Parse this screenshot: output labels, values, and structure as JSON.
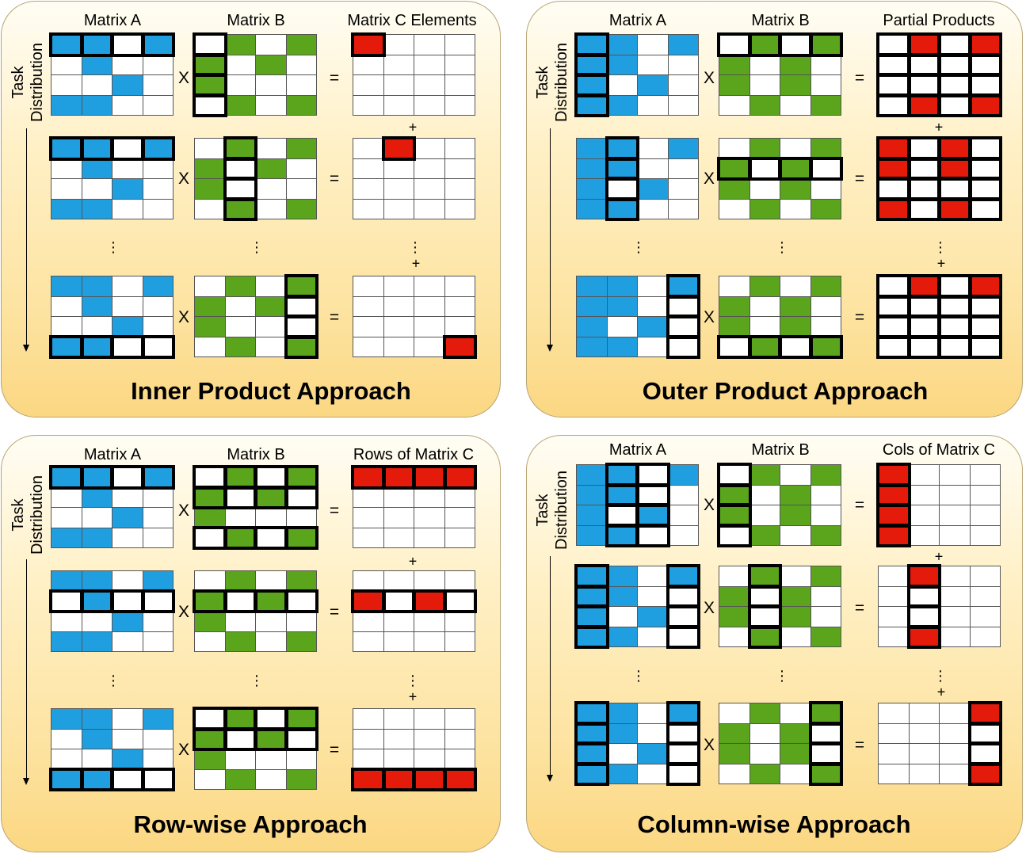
{
  "colors": {
    "a": "#1f9fe0",
    "b": "#5aa51c",
    "c": "#e41b0a",
    "empty": "#ffffff",
    "panel_edge": "#b8a473"
  },
  "task_distribution_label": "Task Distribution",
  "operators": {
    "multiply": "X",
    "equals": "=",
    "plus": "+",
    "ellipsis": "⋮"
  },
  "panels": [
    {
      "title": "Inner Product Approach",
      "headers": [
        "Matrix A",
        "Matrix B",
        "Matrix C Elements"
      ],
      "matrix_a": [
        "1101",
        "0100",
        "0010",
        "1100"
      ],
      "matrix_b": [
        "0101",
        "1010",
        "1000",
        "0101"
      ],
      "steps": [
        {
          "a_select": "row 1",
          "b_select": "col 1",
          "c_select": "cell 1,1",
          "c_filled": "cell 1,1"
        },
        {
          "a_select": "row 1",
          "b_select": "col 2",
          "c_select": "cell 1,2",
          "c_filled": "cell 1,2"
        },
        {
          "a_select": "row 4",
          "b_select": "col 4",
          "c_select": "cell 4,4",
          "c_filled": "cell 4,4"
        }
      ]
    },
    {
      "title": "Outer Product Approach",
      "headers": [
        "Matrix A",
        "Matrix B",
        "Partial Products"
      ],
      "matrix_a": [
        "1101",
        "1100",
        "1010",
        "1100"
      ],
      "matrix_b": [
        "0101",
        "1010",
        "1010",
        "0101"
      ],
      "steps": [
        {
          "a_select": "col 1",
          "b_select": "row 1",
          "c_select": "all",
          "c_filled": "0101 / 0000 / 0000 / 0101"
        },
        {
          "a_select": "col 2",
          "b_select": "row 2",
          "c_select": "all",
          "c_filled": "1010 / 1010 / 0000 / 1010"
        },
        {
          "a_select": "col 4",
          "b_select": "row 4",
          "c_select": "all",
          "c_filled": "0101 / 0000 / 0000 / 0000"
        }
      ]
    },
    {
      "title": "Row-wise Approach",
      "headers": [
        "Matrix A",
        "Matrix B",
        "Rows of Matrix C"
      ],
      "matrix_a": [
        "1101",
        "0100",
        "0010",
        "1100"
      ],
      "matrix_b": [
        "0101",
        "1010",
        "1000",
        "0101"
      ],
      "steps": [
        {
          "a_select": "row 1",
          "b_select": "rows 1,2,4",
          "c_select": "row 1",
          "c_filled": "row 1"
        },
        {
          "a_select": "row 2",
          "b_select": "row 2",
          "c_select": "row 2",
          "c_filled": "1010"
        },
        {
          "a_select": "row 4",
          "b_select": "rows 1,2",
          "c_select": "row 4",
          "c_filled": "row 4"
        }
      ]
    },
    {
      "title": "Column-wise Approach",
      "headers": [
        "Matrix A",
        "Matrix B",
        "Cols of Matrix C"
      ],
      "matrix_a": [
        "1101",
        "1100",
        "1010",
        "1100"
      ],
      "matrix_b": [
        "0101",
        "1010",
        "1010",
        "0101"
      ],
      "steps": [
        {
          "a_select": "cols 2,3",
          "b_select": "col 1",
          "c_select": "col 1",
          "c_filled": "col 1"
        },
        {
          "a_select": "cols 1,4",
          "b_select": "col 2",
          "c_select": "col 2",
          "c_filled": "rows 1,4"
        },
        {
          "a_select": "cols 1,4",
          "b_select": "col 4",
          "c_select": "col 4",
          "c_filled": "rows 1,4"
        }
      ]
    }
  ]
}
